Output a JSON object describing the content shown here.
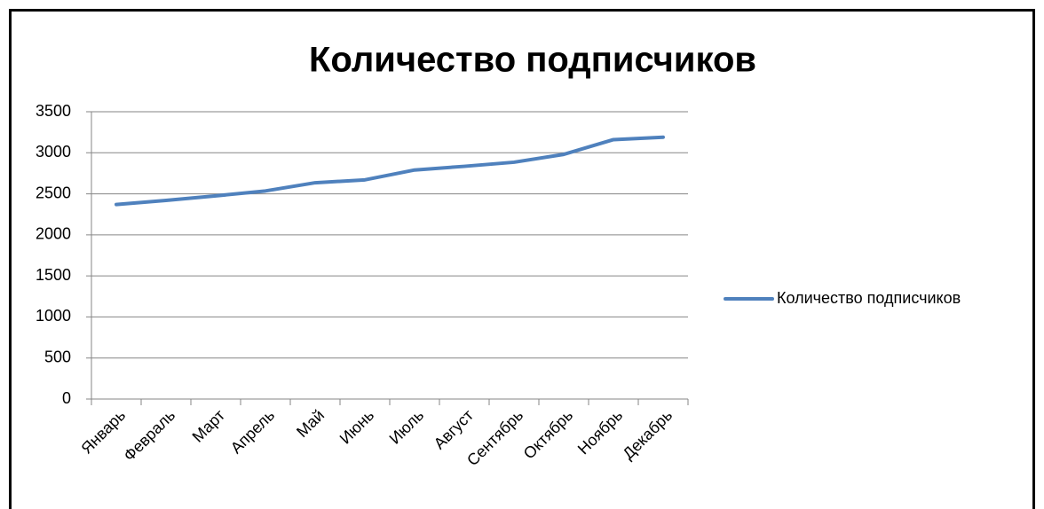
{
  "chart_data": {
    "type": "line",
    "title": "Количество подписчиков",
    "categories": [
      "Январь",
      "Февраль",
      "Март",
      "Апрель",
      "Май",
      "Июнь",
      "Июль",
      "Август",
      "Сентябрь",
      "Октябрь",
      "Ноябрь",
      "Декабрь"
    ],
    "series": [
      {
        "name": "Количество подписчиков",
        "color": "#4f81bd",
        "values": [
          2370,
          2420,
          2475,
          2535,
          2635,
          2670,
          2790,
          2835,
          2885,
          2980,
          3160,
          3190
        ]
      }
    ],
    "ylim": [
      0,
      3500
    ],
    "yticks": [
      0,
      500,
      1000,
      1500,
      2000,
      2500,
      3000,
      3500
    ],
    "grid": true,
    "legend": "right"
  }
}
